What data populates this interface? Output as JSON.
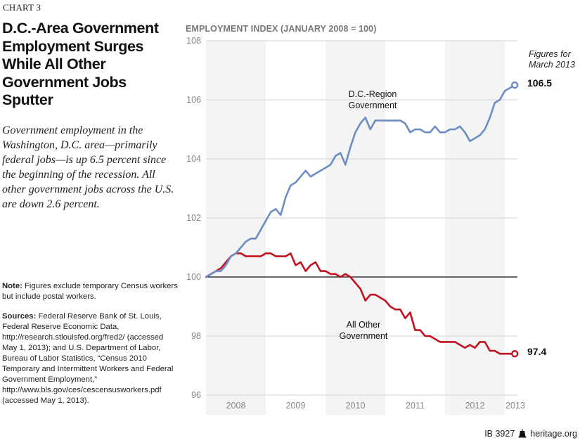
{
  "chart_label": "CHART 3",
  "title": "D.C.-Area Government Employment Surges While All Other Government Jobs Sputter",
  "subtitle": "Government employment in the Washington, D.C. area—primarily federal jobs—is up 6.5 percent since the beginning of the recession. All other government jobs across the U.S. are down 2.6 percent.",
  "note": {
    "label": "Note:",
    "text": " Figures exclude temporary Census workers but include postal workers."
  },
  "sources": {
    "label": "Sources:",
    "text": " Federal Reserve Bank of St. Louis, Federal Reserve Economic Data, http://research.stlouisfed.org/fred2/ (accessed May 1, 2013); and U.S. Department of Labor, Bureau of Labor Statistics, “Census 2010 Temporary and Intermittent Workers and Federal Government Employment,” http://www.bls.gov/ces/cescensusworkers.pdf (accessed May 1, 2013)."
  },
  "footer": {
    "id": "IB 3927",
    "site": "heritage.org",
    "icon": "liberty-bell-icon"
  },
  "figures_note": "Figures for March 2013",
  "colors": {
    "dc": "#6d8dc4",
    "other": "#c3121f",
    "band": "#f4f4f4",
    "grid": "#dcdcdc",
    "baseline": "#111111"
  },
  "chart_data": {
    "type": "line",
    "title": "",
    "ylabel": "EMPLOYMENT INDEX (JANUARY 2008 = 100)",
    "xlabel": "",
    "ylim": [
      96,
      108
    ],
    "yticks": [
      96,
      98,
      100,
      102,
      104,
      106,
      108
    ],
    "xticks": [
      "2008",
      "2009",
      "2010",
      "2011",
      "2012",
      "2013"
    ],
    "x_start": "January 2008",
    "x_end": "March 2013",
    "frequency": "monthly",
    "grid": true,
    "baseline": 100,
    "shaded_years": [
      "2008",
      "2010",
      "2012"
    ],
    "series": [
      {
        "name": "D.C.-Region Government",
        "label_lines": [
          "D.C.-Region",
          "Government"
        ],
        "end_value": "106.5",
        "values": [
          100.0,
          100.1,
          100.2,
          100.2,
          100.4,
          100.7,
          100.8,
          101.0,
          101.2,
          101.3,
          101.3,
          101.6,
          101.9,
          102.2,
          102.3,
          102.1,
          102.7,
          103.1,
          103.2,
          103.4,
          103.6,
          103.4,
          103.5,
          103.6,
          103.7,
          103.8,
          104.1,
          104.2,
          103.8,
          104.4,
          104.9,
          105.2,
          105.4,
          105.0,
          105.3,
          105.3,
          105.3,
          105.3,
          105.3,
          105.3,
          105.2,
          104.9,
          105.0,
          105.0,
          104.9,
          104.9,
          105.1,
          104.9,
          104.9,
          105.0,
          105.0,
          105.1,
          104.9,
          104.6,
          104.7,
          104.8,
          105.0,
          105.4,
          105.9,
          106.0,
          106.3,
          106.4,
          106.5
        ]
      },
      {
        "name": "All Other Government",
        "label_lines": [
          "All Other",
          "Government"
        ],
        "end_value": "97.4",
        "values": [
          100.0,
          100.1,
          100.2,
          100.3,
          100.5,
          100.7,
          100.8,
          100.8,
          100.7,
          100.7,
          100.7,
          100.7,
          100.8,
          100.8,
          100.7,
          100.7,
          100.7,
          100.8,
          100.4,
          100.5,
          100.2,
          100.4,
          100.5,
          100.2,
          100.2,
          100.1,
          100.1,
          100.0,
          100.1,
          100.0,
          99.8,
          99.6,
          99.2,
          99.4,
          99.4,
          99.3,
          99.2,
          99.0,
          98.9,
          98.9,
          98.6,
          98.8,
          98.2,
          98.2,
          98.0,
          98.0,
          97.9,
          97.8,
          97.8,
          97.8,
          97.8,
          97.7,
          97.6,
          97.7,
          97.6,
          97.8,
          97.8,
          97.5,
          97.5,
          97.4,
          97.4,
          97.4,
          97.4
        ]
      }
    ]
  }
}
